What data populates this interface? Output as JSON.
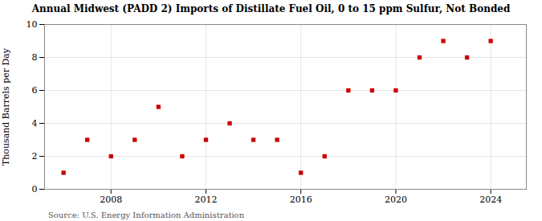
{
  "chart_data": {
    "type": "scatter",
    "title": "Annual Midwest (PADD 2) Imports of Distillate Fuel Oil, 0 to 15 ppm Sulfur, Not Bonded",
    "ylabel": "Thousand Barrels per Day",
    "source": "Source: U.S. Energy Information Administration",
    "x": [
      2006,
      2007,
      2008,
      2009,
      2010,
      2011,
      2012,
      2013,
      2014,
      2015,
      2016,
      2017,
      2018,
      2019,
      2020,
      2021,
      2022,
      2023,
      2024
    ],
    "values": [
      1,
      3,
      2,
      3,
      5,
      2,
      3,
      4,
      3,
      3,
      1,
      2,
      6,
      6,
      6,
      8,
      9,
      8,
      9
    ],
    "color": "#cc0000",
    "marker": "square",
    "xlim": [
      2005.2,
      2025.5
    ],
    "ylim": [
      0,
      10
    ],
    "xticks": [
      2008,
      2012,
      2016,
      2020,
      2024
    ],
    "yticks": [
      0,
      2,
      4,
      6,
      8,
      10
    ],
    "grid": true
  }
}
